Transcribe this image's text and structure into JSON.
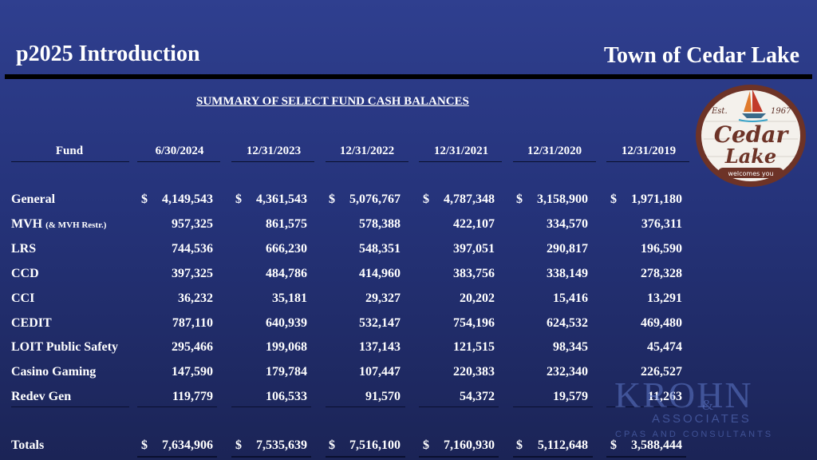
{
  "header": {
    "left_title": "p2025 Introduction",
    "right_title": "Town of Cedar Lake"
  },
  "subtitle": "SUMMARY OF SELECT FUND CASH BALANCES",
  "table": {
    "fund_header": "Fund",
    "columns": [
      "6/30/2024",
      "12/31/2023",
      "12/31/2022",
      "12/31/2021",
      "12/31/2020",
      "12/31/2019"
    ],
    "rows": [
      {
        "label": "General",
        "label_note": "",
        "dollar": true,
        "values": [
          "4,149,543",
          "4,361,543",
          "5,076,767",
          "4,787,348",
          "3,158,900",
          "1,971,180"
        ]
      },
      {
        "label": "MVH",
        "label_note": "(& MVH Restr.)",
        "dollar": false,
        "values": [
          "957,325",
          "861,575",
          "578,388",
          "422,107",
          "334,570",
          "376,311"
        ]
      },
      {
        "label": "LRS",
        "label_note": "",
        "dollar": false,
        "values": [
          "744,536",
          "666,230",
          "548,351",
          "397,051",
          "290,817",
          "196,590"
        ]
      },
      {
        "label": "CCD",
        "label_note": "",
        "dollar": false,
        "values": [
          "397,325",
          "484,786",
          "414,960",
          "383,756",
          "338,149",
          "278,328"
        ]
      },
      {
        "label": "CCI",
        "label_note": "",
        "dollar": false,
        "values": [
          "36,232",
          "35,181",
          "29,327",
          "20,202",
          "15,416",
          "13,291"
        ]
      },
      {
        "label": "CEDIT",
        "label_note": "",
        "dollar": false,
        "values": [
          "787,110",
          "640,939",
          "532,147",
          "754,196",
          "624,532",
          "469,480"
        ]
      },
      {
        "label": "LOIT Public Safety",
        "label_note": "",
        "dollar": false,
        "values": [
          "295,466",
          "199,068",
          "137,143",
          "121,515",
          "98,345",
          "45,474"
        ]
      },
      {
        "label": "Casino Gaming",
        "label_note": "",
        "dollar": false,
        "values": [
          "147,590",
          "179,784",
          "107,447",
          "220,383",
          "232,340",
          "226,527"
        ]
      },
      {
        "label": "Redev Gen",
        "label_note": "",
        "dollar": false,
        "values": [
          "119,779",
          "106,533",
          "91,570",
          "54,372",
          "19,579",
          "11,263"
        ]
      }
    ],
    "totals": {
      "label": "Totals",
      "values": [
        "7,634,906",
        "7,535,639",
        "7,516,100",
        "7,160,930",
        "5,112,648",
        "3,588,444"
      ]
    },
    "currency_symbol": "$"
  },
  "logo": {
    "est": "Est.",
    "year": "1967",
    "line1": "Cedar",
    "line2": "Lake",
    "tagline": "welcomes you"
  },
  "watermark": {
    "name": "KROHN",
    "amp": "&",
    "associates": "ASSOCIATES",
    "tagline": "CPAS AND CONSULTANTS"
  },
  "colors": {
    "background_top": "#2f3f8f",
    "background_bottom": "#1b2456",
    "logo_ring": "#7a3b2e"
  }
}
